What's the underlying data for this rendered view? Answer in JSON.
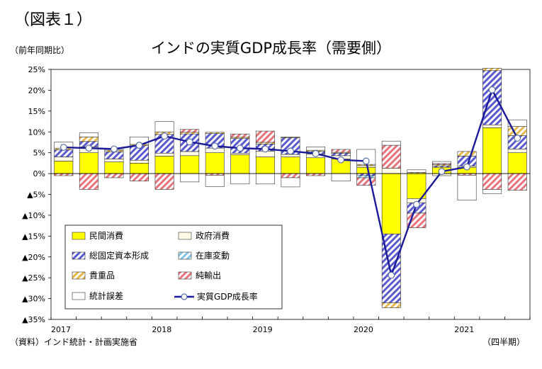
{
  "figure_label": "（図表１）",
  "unit_label": "（前年同期比）",
  "source_note": "（資料）インド統計・計画実施省",
  "period_note": "（四半期）",
  "colors": {
    "consumption": "#ffff00",
    "government": "#fffbe6",
    "investment": "#5a5ad0",
    "inventory": "#7fc4ea",
    "valuables": "#e8b84a",
    "net_exports": "#e8737a",
    "discrepancy": "#ffffff",
    "gdp_line": "#1a1a9a"
  },
  "chart_data": {
    "type": "bar",
    "title": "インドの実質GDP成長率（需要側）",
    "ylabel": "（前年同期比）",
    "xlabel": "（四半期）",
    "ylim": [
      -35,
      25
    ],
    "y_ticks": [
      25,
      20,
      15,
      10,
      5,
      0,
      -5,
      -10,
      -15,
      -20,
      -25,
      -30,
      -35
    ],
    "y_tick_labels": [
      "25%",
      "20%",
      "15%",
      "10%",
      "5%",
      "0%",
      "▲5%",
      "▲10%",
      "▲15%",
      "▲20%",
      "▲25%",
      "▲30%",
      "▲35%"
    ],
    "year_labels": [
      "2017",
      "2018",
      "2019",
      "2020",
      "2021"
    ],
    "year_start_index": [
      0,
      4,
      8,
      12,
      16
    ],
    "categories": [
      "2017Q1",
      "2017Q2",
      "2017Q3",
      "2017Q4",
      "2018Q1",
      "2018Q2",
      "2018Q3",
      "2018Q4",
      "2019Q1",
      "2019Q2",
      "2019Q3",
      "2019Q4",
      "2020Q1",
      "2020Q2",
      "2020Q3",
      "2020Q4",
      "2021Q1",
      "2021Q2",
      "2021Q3"
    ],
    "series": [
      {
        "name": "民間消費",
        "key": "consumption",
        "pattern": "solid",
        "values": [
          3.0,
          5.0,
          2.8,
          2.5,
          4.2,
          4.3,
          5.0,
          4.5,
          4.0,
          4.0,
          3.8,
          3.5,
          1.5,
          -14.5,
          -6.0,
          1.5,
          1.5,
          11.0,
          5.0
        ]
      },
      {
        "name": "政府消費",
        "key": "government",
        "pattern": "solid",
        "values": [
          1.0,
          1.4,
          0.7,
          0.7,
          0.7,
          1.0,
          1.1,
          0.4,
          1.4,
          0.6,
          0.9,
          0.8,
          0.4,
          1.3,
          -1.0,
          -0.5,
          0.3,
          0.7,
          0.9
        ]
      },
      {
        "name": "総固定資本形成",
        "key": "investment",
        "pattern": "hatch",
        "values": [
          1.7,
          1.3,
          1.7,
          3.5,
          4.5,
          4.2,
          3.5,
          3.5,
          1.7,
          4.0,
          0.6,
          0.6,
          -0.5,
          -16.5,
          -2.5,
          0.3,
          2.4,
          13.0,
          3.2
        ]
      },
      {
        "name": "在庫変動",
        "key": "inventory",
        "pattern": "hatch",
        "values": [
          0.0,
          0.0,
          0.0,
          0.0,
          0.0,
          0.0,
          0.0,
          0.0,
          0.0,
          0.0,
          0.0,
          0.0,
          -0.5,
          0.0,
          0.0,
          0.0,
          0.0,
          0.0,
          0.0
        ]
      },
      {
        "name": "貴重品",
        "key": "valuables",
        "pattern": "hatch",
        "values": [
          0.4,
          1.1,
          0.4,
          0.3,
          0.6,
          0.4,
          0.3,
          0.3,
          0.4,
          0.2,
          0.3,
          0.2,
          0.3,
          -1.2,
          0.3,
          0.3,
          1.1,
          0.6,
          2.2
        ]
      },
      {
        "name": "純輸出",
        "key": "net_exports",
        "pattern": "hatch",
        "values": [
          -0.5,
          -3.8,
          -1.0,
          -1.8,
          -3.8,
          0.7,
          -0.4,
          0.8,
          2.7,
          -1.0,
          -0.5,
          0.7,
          -1.8,
          5.5,
          -3.5,
          0.3,
          -0.4,
          -3.8,
          -4.0
        ]
      },
      {
        "name": "統計誤差",
        "key": "discrepancy",
        "pattern": "solid",
        "values": [
          1.5,
          1.0,
          0.2,
          1.8,
          2.5,
          -2.0,
          -2.7,
          -2.5,
          -2.5,
          -2.2,
          0.8,
          -1.8,
          3.6,
          1.0,
          0.6,
          0.5,
          -6.0,
          -1.0,
          1.6
        ]
      }
    ],
    "line": {
      "name": "実質GDP成長率",
      "values": [
        6.3,
        6.1,
        5.9,
        6.8,
        9.0,
        7.6,
        6.6,
        6.1,
        5.9,
        5.4,
        4.8,
        3.3,
        3.0,
        -24.4,
        -7.4,
        0.5,
        1.6,
        20.1,
        8.5
      ]
    },
    "legend": {
      "placement": "bottom-left",
      "items": [
        "民間消費",
        "政府消費",
        "総固定資本形成",
        "在庫変動",
        "貴重品",
        "純輸出",
        "統計誤差",
        "実質GDP成長率"
      ]
    },
    "grid": false
  }
}
